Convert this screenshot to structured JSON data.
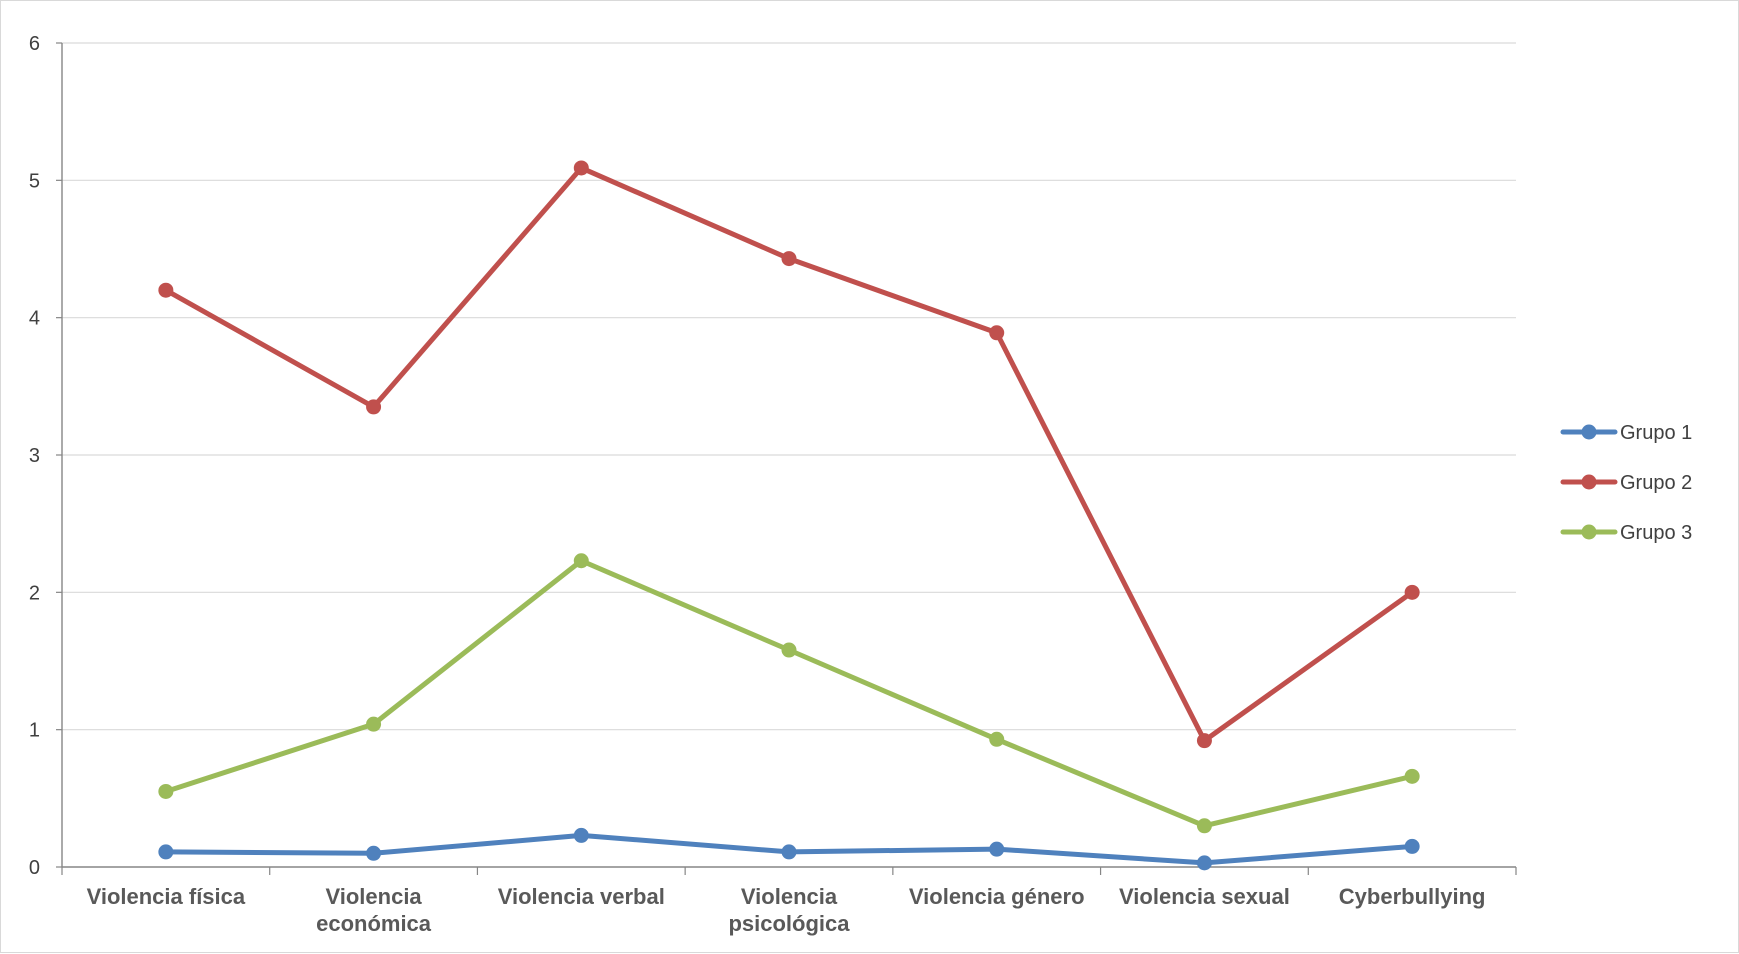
{
  "chart_data": {
    "type": "line",
    "title": "",
    "xlabel": "",
    "ylabel": "",
    "categories": [
      [
        "Violencia física"
      ],
      [
        "Violencia",
        "económica"
      ],
      [
        "Violencia verbal"
      ],
      [
        "Violencia",
        "psicológica"
      ],
      [
        "Violencia género"
      ],
      [
        "Violencia sexual"
      ],
      [
        "Cyberbullying"
      ]
    ],
    "ylim": [
      0,
      6
    ],
    "yticks": [
      "0",
      "1",
      "2",
      "3",
      "4",
      "5",
      "6"
    ],
    "grid": true,
    "legend": "right",
    "series": [
      {
        "name": "Grupo 1",
        "color": "#4f81bd",
        "values": [
          0.11,
          0.1,
          0.23,
          0.11,
          0.13,
          0.03,
          0.15
        ]
      },
      {
        "name": "Grupo 2",
        "color": "#c0504d",
        "values": [
          4.2,
          3.35,
          5.09,
          4.43,
          3.89,
          0.92,
          2.0
        ]
      },
      {
        "name": "Grupo 3",
        "color": "#9bbb59",
        "values": [
          0.55,
          1.04,
          2.23,
          1.58,
          0.93,
          0.3,
          0.66
        ]
      }
    ]
  }
}
